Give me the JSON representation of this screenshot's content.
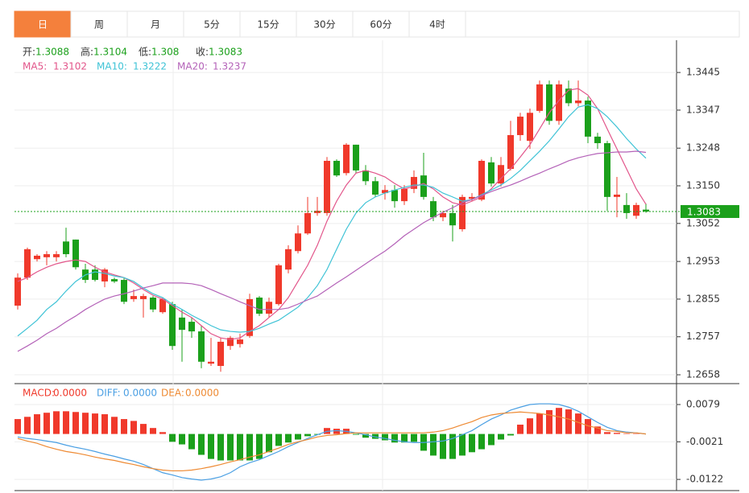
{
  "tabs": [
    "日",
    "周",
    "月",
    "5分",
    "15分",
    "30分",
    "60分",
    "4时"
  ],
  "chart_data": [
    {
      "type": "candlestick",
      "info_labels": [
        "开:",
        "高:",
        "低:",
        "收:"
      ],
      "up_color": "#f0392b",
      "down_color": "#1ba01b",
      "ylim": [
        1.2635,
        1.3529
      ],
      "yticks": [
        1.3445,
        1.3347,
        1.3248,
        {
          "value": 1.315,
          "label": "1.3150"
        },
        1.3052,
        1.2953,
        1.2855,
        1.2757,
        1.2658
      ],
      "grid": true,
      "open": [
        1.2838,
        1.2911,
        1.2959,
        1.2964,
        1.2964,
        1.3005,
        1.301,
        1.2932,
        1.2932,
        1.2901,
        1.2907,
        1.2905,
        1.2855,
        1.2855,
        1.2859,
        1.2821,
        1.2842,
        1.2807,
        1.2796,
        1.2771,
        1.2687,
        1.2681,
        1.2733,
        1.2738,
        1.2759,
        1.2859,
        1.2817,
        1.2842,
        1.2932,
        1.298,
        1.3026,
        1.3079,
        1.3079,
        1.3215,
        1.3183,
        1.3257,
        1.319,
        1.3162,
        1.3131,
        1.3139,
        1.311,
        1.3142,
        1.3177,
        1.311,
        1.3068,
        1.3079,
        1.3037,
        1.3116,
        1.3114,
        1.3211,
        1.3156,
        1.3194,
        1.3282,
        1.3267,
        1.3345,
        1.3414,
        1.3319,
        1.3403,
        1.3365,
        1.3372,
        1.3278,
        1.3261,
        1.3121,
        1.31,
        1.3072,
        1.3088
      ],
      "high": [
        1.2922,
        1.2989,
        1.2972,
        1.298,
        1.298,
        1.3041,
        1.301,
        1.2947,
        1.2943,
        1.2936,
        1.2911,
        1.2911,
        1.288,
        1.2869,
        1.2863,
        1.2859,
        1.2848,
        1.2828,
        1.2807,
        1.2786,
        1.2754,
        1.2754,
        1.2759,
        1.2765,
        1.2869,
        1.2863,
        1.2859,
        1.2947,
        1.2995,
        1.3047,
        1.3121,
        1.3121,
        1.3225,
        1.3219,
        1.3261,
        1.3257,
        1.3204,
        1.3173,
        1.3152,
        1.3152,
        1.3152,
        1.319,
        1.3236,
        1.3121,
        1.3085,
        1.31,
        1.3127,
        1.3131,
        1.3219,
        1.3225,
        1.3225,
        1.3319,
        1.334,
        1.3351,
        1.3424,
        1.3424,
        1.3424,
        1.3424,
        1.3424,
        1.3382,
        1.3288,
        1.3267,
        1.3173,
        1.3131,
        1.3106,
        1.3104
      ],
      "low": [
        1.2828,
        1.2905,
        1.2953,
        1.2943,
        1.2953,
        1.2964,
        1.2932,
        1.2897,
        1.2901,
        1.2886,
        1.2897,
        1.2842,
        1.2848,
        1.2807,
        1.2821,
        1.2817,
        1.2723,
        1.2692,
        1.2754,
        1.2675,
        1.2681,
        1.2666,
        1.2723,
        1.2729,
        1.2754,
        1.2811,
        1.2807,
        1.2838,
        1.2922,
        1.2974,
        1.3022,
        1.3072,
        1.3072,
        1.3173,
        1.3177,
        1.3183,
        1.3152,
        1.3121,
        1.3114,
        1.3093,
        1.31,
        1.3131,
        1.3114,
        1.3058,
        1.3058,
        1.3005,
        1.3031,
        1.311,
        1.311,
        1.3148,
        1.3148,
        1.319,
        1.3267,
        1.3246,
        1.334,
        1.3309,
        1.3309,
        1.3357,
        1.3357,
        1.3261,
        1.3246,
        1.3085,
        1.3068,
        1.3064,
        1.3064,
        1.308
      ],
      "close": [
        1.2911,
        1.2985,
        1.2968,
        1.2972,
        1.2972,
        1.2972,
        1.2938,
        1.2905,
        1.2905,
        1.2932,
        1.2901,
        1.2848,
        1.2863,
        1.2863,
        1.2828,
        1.2855,
        1.2733,
        1.2775,
        1.2771,
        1.2692,
        1.2692,
        1.2744,
        1.2754,
        1.275,
        1.2855,
        1.2817,
        1.2848,
        1.2943,
        1.2985,
        1.3026,
        1.3079,
        1.3085,
        1.3215,
        1.3177,
        1.3257,
        1.319,
        1.3162,
        1.3127,
        1.3139,
        1.311,
        1.3142,
        1.3173,
        1.3121,
        1.3068,
        1.3079,
        1.3047,
        1.3121,
        1.3121,
        1.3215,
        1.3156,
        1.3204,
        1.3282,
        1.333,
        1.334,
        1.3414,
        1.3319,
        1.3414,
        1.3365,
        1.3372,
        1.3278,
        1.3261,
        1.3121,
        1.3127,
        1.3079,
        1.31,
        1.3083
      ],
      "series": [
        {
          "name": "MA5:",
          "color": "#e2558a",
          "values": [
            1.2901,
            1.2911,
            1.2926,
            1.2938,
            1.2947,
            1.2953,
            1.2957,
            1.2953,
            1.2938,
            1.2926,
            1.2918,
            1.2911,
            1.2897,
            1.288,
            1.2865,
            1.2855,
            1.2838,
            1.2821,
            1.2807,
            1.2786,
            1.2765,
            1.2754,
            1.275,
            1.2754,
            1.2771,
            1.2786,
            1.2807,
            1.2828,
            1.2859,
            1.2901,
            1.2943,
            1.2995,
            1.3058,
            1.311,
            1.3152,
            1.3183,
            1.319,
            1.3183,
            1.3173,
            1.3156,
            1.3142,
            1.3148,
            1.3156,
            1.3142,
            1.3121,
            1.3106,
            1.31,
            1.311,
            1.3121,
            1.3142,
            1.3169,
            1.3194,
            1.3225,
            1.3257,
            1.3298,
            1.334,
            1.3372,
            1.3399,
            1.3403,
            1.3386,
            1.3351,
            1.3298,
            1.3246,
            1.3194,
            1.3142,
            1.3102
          ]
        },
        {
          "name": "MA10:",
          "color": "#3fc3d6",
          "values": [
            1.2759,
            1.2779,
            1.28,
            1.2828,
            1.2848,
            1.2876,
            1.2901,
            1.2918,
            1.2926,
            1.2922,
            1.2915,
            1.2911,
            1.2901,
            1.2884,
            1.2869,
            1.2859,
            1.2842,
            1.2828,
            1.2813,
            1.28,
            1.2786,
            1.2775,
            1.2771,
            1.2769,
            1.2771,
            1.2779,
            1.279,
            1.28,
            1.2817,
            1.2834,
            1.2859,
            1.289,
            1.2932,
            1.2985,
            1.3037,
            1.3079,
            1.3106,
            1.3121,
            1.3131,
            1.3139,
            1.3146,
            1.3152,
            1.3152,
            1.3146,
            1.3131,
            1.3121,
            1.311,
            1.3114,
            1.3127,
            1.3139,
            1.3152,
            1.3169,
            1.319,
            1.3215,
            1.324,
            1.3267,
            1.3298,
            1.333,
            1.3355,
            1.3361,
            1.3351,
            1.333,
            1.3303,
            1.3273,
            1.3246,
            1.3222
          ]
        },
        {
          "name": "MA20:",
          "color": "#b462b8",
          "values": [
            1.2719,
            1.2733,
            1.2748,
            1.2765,
            1.2779,
            1.2796,
            1.2811,
            1.2828,
            1.2842,
            1.2855,
            1.2863,
            1.2869,
            1.2876,
            1.2884,
            1.289,
            1.2897,
            1.2897,
            1.2897,
            1.2895,
            1.289,
            1.288,
            1.2869,
            1.2859,
            1.2848,
            1.2838,
            1.2828,
            1.2828,
            1.2828,
            1.2832,
            1.2842,
            1.2853,
            1.2863,
            1.288,
            1.2897,
            1.2913,
            1.293,
            1.2947,
            1.2964,
            1.298,
            1.2999,
            1.302,
            1.3037,
            1.3054,
            1.3068,
            1.3081,
            1.3093,
            1.3106,
            1.3114,
            1.3125,
            1.3135,
            1.3144,
            1.3152,
            1.3162,
            1.3173,
            1.3183,
            1.3194,
            1.3204,
            1.3215,
            1.3223,
            1.3229,
            1.3234,
            1.3236,
            1.3238,
            1.3238,
            1.324,
            1.3237
          ]
        }
      ]
    },
    {
      "type": "macd",
      "ylim": [
        -0.0152,
        0.0133
      ],
      "yticks": [
        0.0079,
        -0.0021,
        -0.0122
      ],
      "series": [
        {
          "name": "MACD:",
          "color": "#f0392b",
          "down_color": "#1ba01b",
          "value_label": "0.0000",
          "values": [
            0.004,
            0.0046,
            0.0053,
            0.0057,
            0.0061,
            0.0061,
            0.0059,
            0.0057,
            0.0055,
            0.0053,
            0.0046,
            0.004,
            0.0035,
            0.0027,
            0.0016,
            0.0005,
            -0.0021,
            -0.0028,
            -0.0041,
            -0.0056,
            -0.0067,
            -0.0071,
            -0.0071,
            -0.0071,
            -0.0071,
            -0.0067,
            -0.0049,
            -0.0032,
            -0.0023,
            -0.0015,
            -0.0006,
            -0.0002,
            0.0016,
            0.0014,
            0.0014,
            -0.0002,
            -0.001,
            -0.0013,
            -0.0017,
            -0.0023,
            -0.0023,
            -0.0021,
            -0.0045,
            -0.0058,
            -0.0067,
            -0.0067,
            -0.0058,
            -0.0049,
            -0.0041,
            -0.003,
            -0.0015,
            -0.0004,
            0.0025,
            0.0042,
            0.0055,
            0.0064,
            0.007,
            0.0066,
            0.0055,
            0.004,
            0.002,
            0.0005,
            0.0003,
            0.0001,
            0.0001,
            0
          ]
        },
        {
          "name": "DIFF:",
          "color": "#4a9fe3",
          "value_label": "0.0000",
          "values": [
            -0.0008,
            -0.0012,
            -0.0015,
            -0.0019,
            -0.0023,
            -0.003,
            -0.0036,
            -0.0041,
            -0.0047,
            -0.0054,
            -0.006,
            -0.0067,
            -0.0073,
            -0.0082,
            -0.0093,
            -0.0104,
            -0.011,
            -0.0117,
            -0.0121,
            -0.0124,
            -0.0121,
            -0.0115,
            -0.0104,
            -0.0088,
            -0.0077,
            -0.0069,
            -0.0058,
            -0.0047,
            -0.0034,
            -0.0023,
            -0.0012,
            -0.0002,
            0.0007,
            0.0009,
            0.0007,
            0.0003,
            -0.0002,
            -0.0008,
            -0.0012,
            -0.0017,
            -0.0021,
            -0.0023,
            -0.0023,
            -0.0021,
            -0.0019,
            -0.0012,
            -0.0002,
            0.0009,
            0.0025,
            0.004,
            0.0051,
            0.0064,
            0.0072,
            0.0079,
            0.0081,
            0.0081,
            0.0079,
            0.0072,
            0.0061,
            0.0046,
            0.0031,
            0.0018,
            0.0009,
            0.0005,
            0.0003,
            0
          ]
        },
        {
          "name": "DEA:",
          "color": "#ee8a33",
          "value_label": "0.0000",
          "values": [
            -0.0012,
            -0.0019,
            -0.0025,
            -0.0034,
            -0.0041,
            -0.0047,
            -0.0051,
            -0.0056,
            -0.0062,
            -0.0067,
            -0.0071,
            -0.0077,
            -0.0082,
            -0.0088,
            -0.0093,
            -0.0097,
            -0.0099,
            -0.0099,
            -0.0097,
            -0.0093,
            -0.0088,
            -0.0082,
            -0.0075,
            -0.0069,
            -0.0062,
            -0.0056,
            -0.0047,
            -0.0038,
            -0.0028,
            -0.0021,
            -0.0015,
            -0.0008,
            -0.0004,
            -0.0002,
            0.0001,
            0.0003,
            0.0003,
            0.0003,
            0.0003,
            0.0003,
            0.0003,
            0.0003,
            0.0003,
            0.0005,
            0.0009,
            0.0016,
            0.0025,
            0.0033,
            0.0044,
            0.0051,
            0.0055,
            0.0057,
            0.0059,
            0.0057,
            0.0055,
            0.0051,
            0.0046,
            0.004,
            0.0031,
            0.0022,
            0.0016,
            0.0009,
            0.0007,
            0.0003,
            0.0003,
            0
          ]
        }
      ]
    }
  ]
}
